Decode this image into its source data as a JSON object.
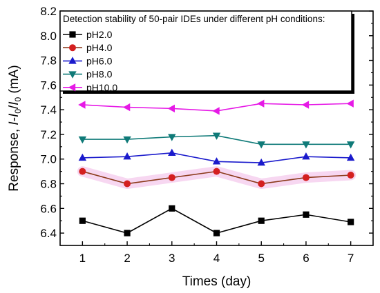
{
  "chart_data": {
    "type": "line",
    "title": "",
    "legend_title": "Detection stability of 50-pair IDEs under different pH conditions:",
    "legend_position": "top-right",
    "xlabel": "Times (day)",
    "ylabel_main": "Response, ",
    "ylabel_italic_i": "I",
    "ylabel_dash": "-",
    "ylabel_italic_i2": "I",
    "ylabel_sub": "0",
    "ylabel_slash": "/",
    "ylabel_italic_i3": "I",
    "ylabel_sub2": "0",
    "ylabel_unit": " (mA)",
    "xlim": [
      0.5,
      7.5
    ],
    "ylim": [
      6.3,
      8.2
    ],
    "xticks": [
      1,
      2,
      3,
      4,
      5,
      6,
      7
    ],
    "xtick_labels": [
      "1",
      "2",
      "3",
      "4",
      "5",
      "6",
      "7"
    ],
    "yticks": [
      6.4,
      6.6,
      6.8,
      7.0,
      7.2,
      7.4,
      7.6,
      7.8,
      8.0,
      8.2
    ],
    "ytick_labels": [
      "6.4",
      "6.6",
      "6.8",
      "7.0",
      "7.2",
      "7.4",
      "7.6",
      "7.8",
      "8.0",
      "8.2"
    ],
    "grid": false,
    "x": [
      1,
      2,
      3,
      4,
      5,
      6,
      7
    ],
    "series": [
      {
        "name": "pH2.0",
        "color": "#000000",
        "marker": "square",
        "values": [
          6.5,
          6.4,
          6.6,
          6.4,
          6.5,
          6.55,
          6.49
        ]
      },
      {
        "name": "pH4.0",
        "color": "#d42020",
        "line_color": "#8b3a1a",
        "marker": "circle",
        "values": [
          6.9,
          6.8,
          6.85,
          6.9,
          6.8,
          6.85,
          6.87
        ]
      },
      {
        "name": "pH6.0",
        "color": "#1a1acc",
        "marker": "triangle-up",
        "values": [
          7.01,
          7.02,
          7.05,
          6.98,
          6.97,
          7.02,
          7.01
        ]
      },
      {
        "name": "pH8.0",
        "color": "#0f7a78",
        "marker": "triangle-down",
        "values": [
          7.16,
          7.16,
          7.18,
          7.19,
          7.12,
          7.12,
          7.12
        ]
      },
      {
        "name": "pH10.0",
        "color": "#e619e6",
        "marker": "triangle-left",
        "values": [
          7.44,
          7.42,
          7.41,
          7.39,
          7.45,
          7.44,
          7.45
        ]
      }
    ]
  }
}
